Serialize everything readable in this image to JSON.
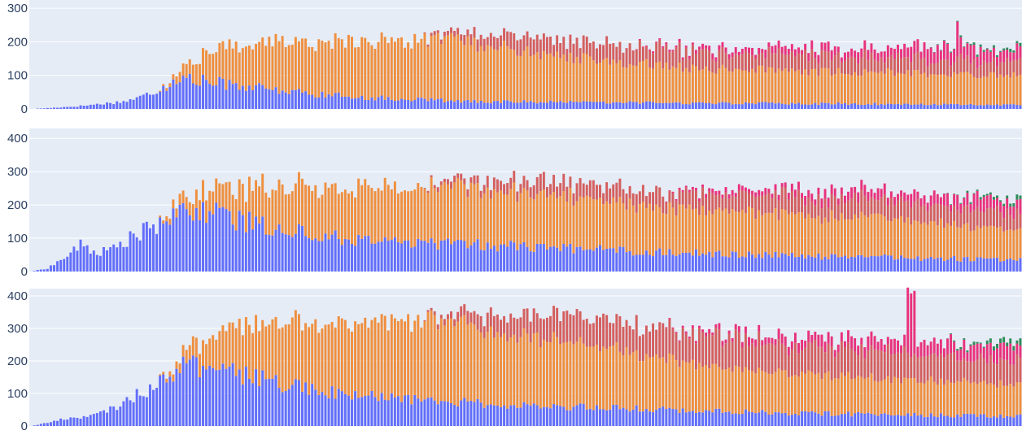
{
  "chart_data": [
    {
      "type": "bar",
      "barmode": "stack",
      "bar_count": 300,
      "ylim": [
        0,
        310
      ],
      "yticks": [
        0,
        100,
        200,
        300
      ],
      "grid": true,
      "series": [
        {
          "color": "#636efa",
          "anchors": [
            [
              0,
              0
            ],
            [
              6,
              3
            ],
            [
              14,
              8
            ],
            [
              22,
              16
            ],
            [
              28,
              22
            ],
            [
              33,
              35
            ],
            [
              38,
              55
            ],
            [
              43,
              75
            ],
            [
              47,
              92
            ],
            [
              52,
              82
            ],
            [
              56,
              78
            ],
            [
              60,
              74
            ],
            [
              65,
              68
            ],
            [
              70,
              60
            ],
            [
              75,
              55
            ],
            [
              80,
              50
            ],
            [
              85,
              45
            ],
            [
              92,
              40
            ],
            [
              100,
              35
            ],
            [
              110,
              30
            ],
            [
              120,
              26
            ],
            [
              140,
              22
            ],
            [
              160,
              20
            ],
            [
              200,
              18
            ],
            [
              240,
              16
            ],
            [
              280,
              13
            ],
            [
              299,
              12
            ]
          ],
          "noise": 0.25
        },
        {
          "color": "#ef8f3f",
          "anchors": [
            [
              0,
              0
            ],
            [
              38,
              0
            ],
            [
              42,
              12
            ],
            [
              47,
              40
            ],
            [
              52,
              80
            ],
            [
              57,
              100
            ],
            [
              62,
              120
            ],
            [
              70,
              140
            ],
            [
              80,
              150
            ],
            [
              90,
              160
            ],
            [
              100,
              170
            ],
            [
              110,
              175
            ],
            [
              120,
              178
            ],
            [
              130,
              180
            ],
            [
              140,
              165
            ],
            [
              150,
              150
            ],
            [
              160,
              135
            ],
            [
              170,
              125
            ],
            [
              180,
              118
            ],
            [
              190,
              110
            ],
            [
              200,
              105
            ],
            [
              210,
              100
            ],
            [
              220,
              98
            ],
            [
              240,
              95
            ],
            [
              260,
              95
            ],
            [
              280,
              90
            ],
            [
              299,
              85
            ]
          ],
          "noise": 0.12
        },
        {
          "color": "#d45f5f",
          "anchors": [
            [
              0,
              0
            ],
            [
              118,
              0
            ],
            [
              122,
              10
            ],
            [
              130,
              22
            ],
            [
              140,
              35
            ],
            [
              150,
              45
            ],
            [
              160,
              50
            ],
            [
              170,
              52
            ],
            [
              180,
              52
            ],
            [
              200,
              50
            ],
            [
              220,
              48
            ],
            [
              240,
              46
            ],
            [
              260,
              45
            ],
            [
              280,
              42
            ],
            [
              299,
              40
            ]
          ],
          "noise": 0.3
        },
        {
          "color": "#e8327c",
          "anchors": [
            [
              0,
              0
            ],
            [
              180,
              0
            ],
            [
              190,
              5
            ],
            [
              200,
              10
            ],
            [
              210,
              15
            ],
            [
              220,
              18
            ],
            [
              240,
              22
            ],
            [
              260,
              28
            ],
            [
              270,
              38
            ],
            [
              280,
              42
            ],
            [
              290,
              40
            ],
            [
              299,
              35
            ]
          ],
          "noise": 0.4
        },
        {
          "color": "#2e8b57",
          "anchors": [
            [
              0,
              0
            ],
            [
              270,
              0
            ],
            [
              276,
              2
            ],
            [
              282,
              4
            ],
            [
              290,
              6
            ],
            [
              299,
              8
            ]
          ],
          "noise": 0.6
        }
      ],
      "spikes": [
        [
          280,
          3,
          70
        ]
      ]
    },
    {
      "type": "bar",
      "barmode": "stack",
      "bar_count": 300,
      "ylim": [
        0,
        420
      ],
      "yticks": [
        0,
        100,
        200,
        300,
        400
      ],
      "grid": true,
      "series": [
        {
          "color": "#636efa",
          "anchors": [
            [
              0,
              0
            ],
            [
              5,
              10
            ],
            [
              10,
              40
            ],
            [
              15,
              80
            ],
            [
              20,
              55
            ],
            [
              25,
              70
            ],
            [
              30,
              100
            ],
            [
              35,
              128
            ],
            [
              40,
              135
            ],
            [
              45,
              175
            ],
            [
              50,
              190
            ],
            [
              55,
              180
            ],
            [
              60,
              160
            ],
            [
              65,
              150
            ],
            [
              70,
              140
            ],
            [
              75,
              130
            ],
            [
              80,
              120
            ],
            [
              90,
              105
            ],
            [
              100,
              95
            ],
            [
              110,
              90
            ],
            [
              120,
              85
            ],
            [
              140,
              78
            ],
            [
              160,
              70
            ],
            [
              180,
              62
            ],
            [
              200,
              55
            ],
            [
              220,
              50
            ],
            [
              240,
              45
            ],
            [
              260,
              42
            ],
            [
              280,
              38
            ],
            [
              299,
              35
            ]
          ],
          "noise": 0.22
        },
        {
          "color": "#ef8f3f",
          "anchors": [
            [
              0,
              0
            ],
            [
              38,
              0
            ],
            [
              42,
              20
            ],
            [
              47,
              40
            ],
            [
              52,
              60
            ],
            [
              57,
              70
            ],
            [
              62,
              90
            ],
            [
              70,
              120
            ],
            [
              80,
              140
            ],
            [
              90,
              150
            ],
            [
              100,
              160
            ],
            [
              110,
              165
            ],
            [
              120,
              170
            ],
            [
              130,
              170
            ],
            [
              140,
              165
            ],
            [
              150,
              160
            ],
            [
              160,
              155
            ],
            [
              170,
              150
            ],
            [
              180,
              145
            ],
            [
              190,
              140
            ],
            [
              200,
              135
            ],
            [
              220,
              128
            ],
            [
              240,
              122
            ],
            [
              260,
              115
            ],
            [
              280,
              105
            ],
            [
              299,
              90
            ]
          ],
          "noise": 0.12
        },
        {
          "color": "#d45f5f",
          "anchors": [
            [
              0,
              0
            ],
            [
              118,
              0
            ],
            [
              122,
              10
            ],
            [
              130,
              20
            ],
            [
              140,
              30
            ],
            [
              150,
              38
            ],
            [
              160,
              45
            ],
            [
              180,
              48
            ],
            [
              200,
              50
            ],
            [
              220,
              52
            ],
            [
              240,
              55
            ],
            [
              260,
              55
            ],
            [
              280,
              52
            ],
            [
              299,
              50
            ]
          ],
          "noise": 0.3
        },
        {
          "color": "#e8327c",
          "anchors": [
            [
              0,
              0
            ],
            [
              190,
              0
            ],
            [
              196,
              5
            ],
            [
              205,
              10
            ],
            [
              215,
              15
            ],
            [
              230,
              20
            ],
            [
              250,
              25
            ],
            [
              270,
              30
            ],
            [
              285,
              35
            ],
            [
              299,
              40
            ]
          ],
          "noise": 0.4
        },
        {
          "color": "#2e8b57",
          "anchors": [
            [
              0,
              0
            ],
            [
              275,
              0
            ],
            [
              280,
              3
            ],
            [
              288,
              6
            ],
            [
              296,
              10
            ],
            [
              299,
              12
            ]
          ],
          "noise": 0.6
        }
      ],
      "spikes": []
    },
    {
      "type": "bar",
      "barmode": "stack",
      "bar_count": 300,
      "ylim": [
        0,
        410
      ],
      "yticks": [
        0,
        100,
        200,
        300,
        400
      ],
      "grid": true,
      "series": [
        {
          "color": "#636efa",
          "anchors": [
            [
              0,
              0
            ],
            [
              5,
              10
            ],
            [
              10,
              22
            ],
            [
              15,
              28
            ],
            [
              20,
              35
            ],
            [
              25,
              55
            ],
            [
              30,
              85
            ],
            [
              35,
              110
            ],
            [
              40,
              150
            ],
            [
              45,
              180
            ],
            [
              50,
              185
            ],
            [
              55,
              175
            ],
            [
              60,
              165
            ],
            [
              65,
              155
            ],
            [
              70,
              145
            ],
            [
              75,
              130
            ],
            [
              80,
              120
            ],
            [
              90,
              105
            ],
            [
              100,
              92
            ],
            [
              110,
              85
            ],
            [
              120,
              78
            ],
            [
              140,
              68
            ],
            [
              160,
              60
            ],
            [
              180,
              55
            ],
            [
              200,
              48
            ],
            [
              220,
              42
            ],
            [
              240,
              38
            ],
            [
              260,
              35
            ],
            [
              280,
              32
            ],
            [
              299,
              30
            ]
          ],
          "noise": 0.2
        },
        {
          "color": "#ef8f3f",
          "anchors": [
            [
              0,
              0
            ],
            [
              38,
              0
            ],
            [
              42,
              15
            ],
            [
              47,
              40
            ],
            [
              52,
              80
            ],
            [
              57,
              110
            ],
            [
              62,
              140
            ],
            [
              70,
              170
            ],
            [
              80,
              195
            ],
            [
              90,
              215
            ],
            [
              100,
              230
            ],
            [
              110,
              240
            ],
            [
              120,
              245
            ],
            [
              130,
              240
            ],
            [
              140,
              230
            ],
            [
              150,
              215
            ],
            [
              160,
              200
            ],
            [
              170,
              185
            ],
            [
              180,
              175
            ],
            [
              190,
              160
            ],
            [
              200,
              145
            ],
            [
              220,
              130
            ],
            [
              240,
              120
            ],
            [
              260,
              110
            ],
            [
              280,
              102
            ],
            [
              299,
              95
            ]
          ],
          "noise": 0.1
        },
        {
          "color": "#d45f5f",
          "anchors": [
            [
              0,
              0
            ],
            [
              118,
              0
            ],
            [
              122,
              10
            ],
            [
              130,
              30
            ],
            [
              140,
              55
            ],
            [
              150,
              65
            ],
            [
              160,
              80
            ],
            [
              170,
              88
            ],
            [
              180,
              92
            ],
            [
              190,
              100
            ],
            [
              200,
              95
            ],
            [
              220,
              90
            ],
            [
              240,
              85
            ],
            [
              260,
              80
            ],
            [
              280,
              75
            ],
            [
              299,
              70
            ]
          ],
          "noise": 0.25
        },
        {
          "color": "#e8327c",
          "anchors": [
            [
              0,
              0
            ],
            [
              190,
              0
            ],
            [
              196,
              5
            ],
            [
              205,
              12
            ],
            [
              215,
              20
            ],
            [
              230,
              25
            ],
            [
              250,
              30
            ],
            [
              265,
              38
            ],
            [
              275,
              42
            ],
            [
              285,
              45
            ],
            [
              299,
              50
            ]
          ],
          "noise": 0.4
        },
        {
          "color": "#2e8b57",
          "anchors": [
            [
              0,
              0
            ],
            [
              275,
              0
            ],
            [
              280,
              4
            ],
            [
              288,
              8
            ],
            [
              296,
              12
            ],
            [
              299,
              14
            ]
          ],
          "noise": 0.6
        }
      ],
      "spikes": [
        [
          265,
          3,
          160
        ],
        [
          266,
          3,
          150
        ],
        [
          267,
          3,
          140
        ]
      ]
    }
  ]
}
